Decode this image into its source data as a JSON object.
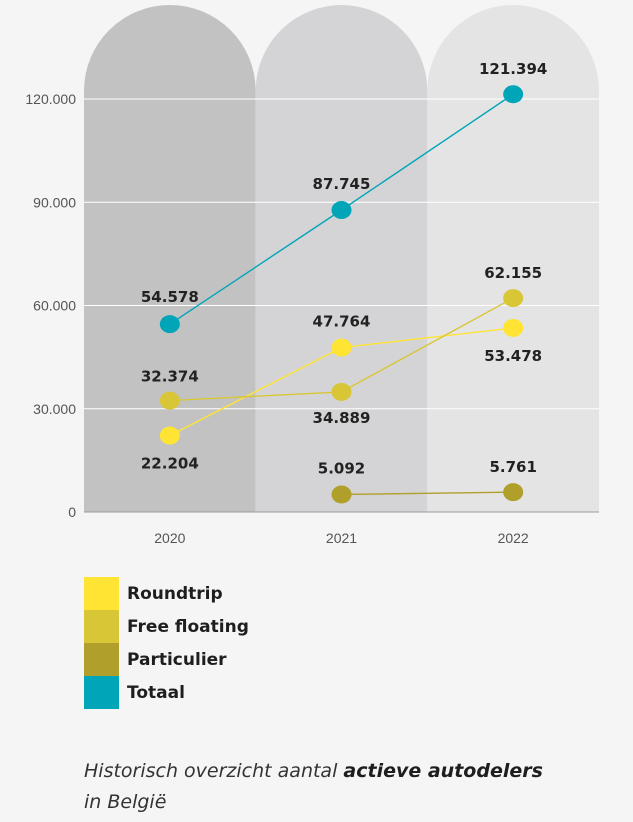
{
  "chart_data": {
    "type": "line",
    "x": [
      "2020",
      "2021",
      "2022"
    ],
    "ylim": [
      0,
      130000
    ],
    "yticks": [
      {
        "value": 0,
        "label": "0"
      },
      {
        "value": 30000,
        "label": "30.000"
      },
      {
        "value": 60000,
        "label": "60.000"
      },
      {
        "value": 90000,
        "label": "90.000"
      },
      {
        "value": 120000,
        "label": "120.000"
      }
    ],
    "series": [
      {
        "name": "Roundtrip",
        "color": "#ffe433",
        "values": [
          22204,
          47764,
          53478
        ],
        "labels": [
          "22.204",
          "47.764",
          "53.478"
        ]
      },
      {
        "name": "Free floating",
        "color": "#d9c636",
        "values": [
          32374,
          34889,
          62155
        ],
        "labels": [
          "32.374",
          "34.889",
          "62.155"
        ]
      },
      {
        "name": "Particulier",
        "color": "#b09f2a",
        "values": [
          null,
          5092,
          5761
        ],
        "labels": [
          "",
          "5.092",
          "5.761"
        ]
      },
      {
        "name": "Totaal",
        "color": "#00a5b8",
        "values": [
          54578,
          87745,
          121394
        ],
        "labels": [
          "54.578",
          "87.745",
          "121.394"
        ]
      }
    ],
    "column_colors": [
      "#c2c2c2",
      "#d4d4d6",
      "#e4e4e5"
    ],
    "grid": true
  },
  "legend": [
    {
      "label": "Roundtrip",
      "color": "#ffe433"
    },
    {
      "label": "Free floating",
      "color": "#d9c636"
    },
    {
      "label": "Particulier",
      "color": "#b09f2a"
    },
    {
      "label": "Totaal",
      "color": "#00a5b8"
    }
  ],
  "caption": {
    "prefix": "Historisch overzicht aantal ",
    "emphasis": "actieve autodelers",
    "suffix": "in België"
  }
}
